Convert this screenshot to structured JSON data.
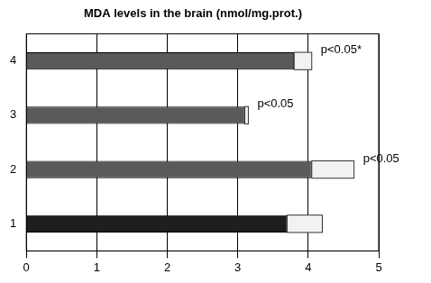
{
  "chart_data": {
    "type": "bar",
    "orientation": "horizontal",
    "title": "MDA levels in the brain (nmol/mg.prot.)",
    "categories": [
      "1",
      "2",
      "3",
      "4"
    ],
    "values": [
      3.7,
      4.05,
      3.1,
      3.8
    ],
    "errors": [
      0.5,
      0.6,
      0.05,
      0.25
    ],
    "colors": [
      "#1e1e1e",
      "#5a5a5a",
      "#5a5a5a",
      "#5a5a5a"
    ],
    "xlim": [
      0,
      5
    ],
    "xticks": [
      0,
      1,
      2,
      3,
      4,
      5
    ],
    "grid": true,
    "annotations": [
      {
        "category": "2",
        "text": "p<0.05"
      },
      {
        "category": "3",
        "text": "p<0.05"
      },
      {
        "category": "4",
        "text": "p<0.05*"
      }
    ]
  }
}
